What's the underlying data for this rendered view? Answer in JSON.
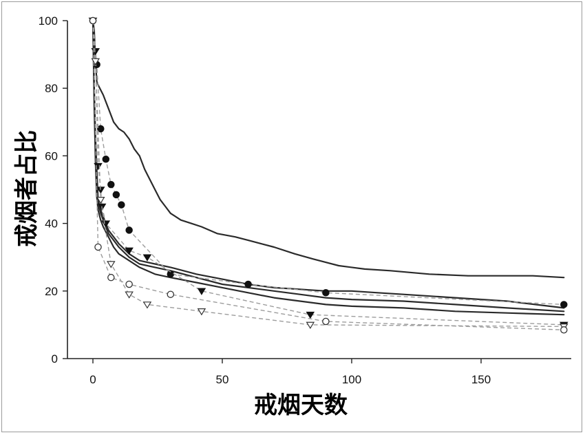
{
  "chart_data": {
    "type": "line",
    "xlabel": "戒烟天数",
    "ylabel": "戒烟者占比",
    "xlim": [
      -10,
      183
    ],
    "ylim": [
      0,
      100
    ],
    "xticks": [
      0,
      50,
      100,
      150
    ],
    "yticks": [
      0,
      20,
      40,
      60,
      80,
      100
    ],
    "ytick_labels": [
      "0",
      "20",
      "40",
      "60",
      "80",
      "100"
    ],
    "grid": false,
    "legend": "none",
    "solid_lines": [
      {
        "style": "solid",
        "points": [
          [
            0,
            100
          ],
          [
            0.5,
            97
          ],
          [
            1,
            88
          ],
          [
            1.5,
            82
          ],
          [
            2,
            81
          ],
          [
            4,
            78
          ],
          [
            6,
            74
          ],
          [
            8,
            70
          ],
          [
            10,
            68
          ],
          [
            12,
            67
          ],
          [
            14,
            65
          ],
          [
            16,
            62
          ],
          [
            18,
            60
          ],
          [
            20,
            56
          ],
          [
            22,
            53
          ],
          [
            24,
            50
          ],
          [
            26,
            47
          ],
          [
            28,
            45
          ],
          [
            30,
            43
          ],
          [
            34,
            41
          ],
          [
            38,
            40
          ],
          [
            42,
            39
          ],
          [
            48,
            37
          ],
          [
            55,
            36
          ],
          [
            60,
            35
          ],
          [
            65,
            34
          ],
          [
            70,
            33
          ],
          [
            78,
            31
          ],
          [
            85,
            29.5
          ],
          [
            95,
            27.5
          ],
          [
            105,
            26.5
          ],
          [
            115,
            26
          ],
          [
            130,
            25
          ],
          [
            145,
            24.5
          ],
          [
            160,
            24.5
          ],
          [
            170,
            24.5
          ],
          [
            182,
            24
          ]
        ]
      },
      {
        "style": "solid",
        "points": [
          [
            0,
            100
          ],
          [
            0.5,
            80
          ],
          [
            1,
            65
          ],
          [
            1.5,
            56
          ],
          [
            2,
            47
          ],
          [
            3,
            44
          ],
          [
            4,
            42
          ],
          [
            6,
            38
          ],
          [
            8,
            36
          ],
          [
            10,
            34
          ],
          [
            14,
            31
          ],
          [
            18,
            29
          ],
          [
            24,
            28
          ],
          [
            30,
            27
          ],
          [
            40,
            25
          ],
          [
            50,
            23.5
          ],
          [
            60,
            22
          ],
          [
            70,
            21
          ],
          [
            80,
            20.5
          ],
          [
            90,
            20
          ],
          [
            100,
            20
          ],
          [
            110,
            19.5
          ],
          [
            120,
            19
          ],
          [
            140,
            18
          ],
          [
            160,
            17
          ],
          [
            182,
            15
          ]
        ]
      },
      {
        "style": "solid",
        "points": [
          [
            0,
            100
          ],
          [
            0.5,
            78
          ],
          [
            1,
            62
          ],
          [
            1.5,
            52
          ],
          [
            2,
            46
          ],
          [
            3,
            43
          ],
          [
            4,
            41
          ],
          [
            6,
            37
          ],
          [
            8,
            35
          ],
          [
            10,
            33
          ],
          [
            14,
            30
          ],
          [
            18,
            28
          ],
          [
            24,
            27
          ],
          [
            30,
            26
          ],
          [
            40,
            24
          ],
          [
            50,
            22
          ],
          [
            60,
            21
          ],
          [
            70,
            20
          ],
          [
            80,
            19
          ],
          [
            90,
            18
          ],
          [
            100,
            17.5
          ],
          [
            120,
            17
          ],
          [
            140,
            16
          ],
          [
            160,
            15
          ],
          [
            182,
            14
          ]
        ]
      },
      {
        "style": "solid",
        "points": [
          [
            0,
            100
          ],
          [
            0.5,
            75
          ],
          [
            1,
            58
          ],
          [
            1.5,
            48
          ],
          [
            2,
            44
          ],
          [
            3,
            41
          ],
          [
            4,
            39
          ],
          [
            6,
            36
          ],
          [
            8,
            33
          ],
          [
            10,
            31
          ],
          [
            14,
            29
          ],
          [
            18,
            27
          ],
          [
            24,
            25
          ],
          [
            30,
            24
          ],
          [
            40,
            22.5
          ],
          [
            50,
            21
          ],
          [
            60,
            19.5
          ],
          [
            70,
            18
          ],
          [
            80,
            17
          ],
          [
            90,
            16
          ],
          [
            100,
            15.5
          ],
          [
            120,
            15
          ],
          [
            140,
            14
          ],
          [
            160,
            13.5
          ],
          [
            182,
            13
          ]
        ]
      }
    ],
    "marker_series": [
      {
        "marker": "filled-circle",
        "points": [
          [
            0,
            100
          ],
          [
            1.5,
            87
          ],
          [
            3,
            68
          ],
          [
            5,
            59
          ],
          [
            7,
            51.5
          ],
          [
            9,
            48.5
          ],
          [
            11,
            45.5
          ],
          [
            14,
            38
          ],
          [
            30,
            25
          ],
          [
            60,
            22
          ],
          [
            90,
            19.5
          ],
          [
            182,
            16
          ]
        ]
      },
      {
        "marker": "filled-triangle-down",
        "points": [
          [
            0,
            100
          ],
          [
            1,
            91
          ],
          [
            2,
            57
          ],
          [
            3,
            50
          ],
          [
            3.5,
            45
          ],
          [
            5,
            40
          ],
          [
            14,
            32
          ],
          [
            21,
            30
          ],
          [
            42,
            20
          ],
          [
            84,
            13
          ],
          [
            182,
            10
          ]
        ]
      },
      {
        "marker": "open-triangle-down",
        "points": [
          [
            0,
            100
          ],
          [
            1,
            88
          ],
          [
            3,
            47
          ],
          [
            7,
            28
          ],
          [
            14,
            19
          ],
          [
            21,
            16
          ],
          [
            42,
            14
          ],
          [
            84,
            10
          ],
          [
            182,
            9.5
          ]
        ]
      },
      {
        "marker": "open-circle",
        "points": [
          [
            0,
            100
          ],
          [
            2,
            33
          ],
          [
            7,
            24
          ],
          [
            14,
            22
          ],
          [
            30,
            19
          ],
          [
            90,
            11
          ],
          [
            182,
            8.5
          ]
        ]
      }
    ]
  }
}
